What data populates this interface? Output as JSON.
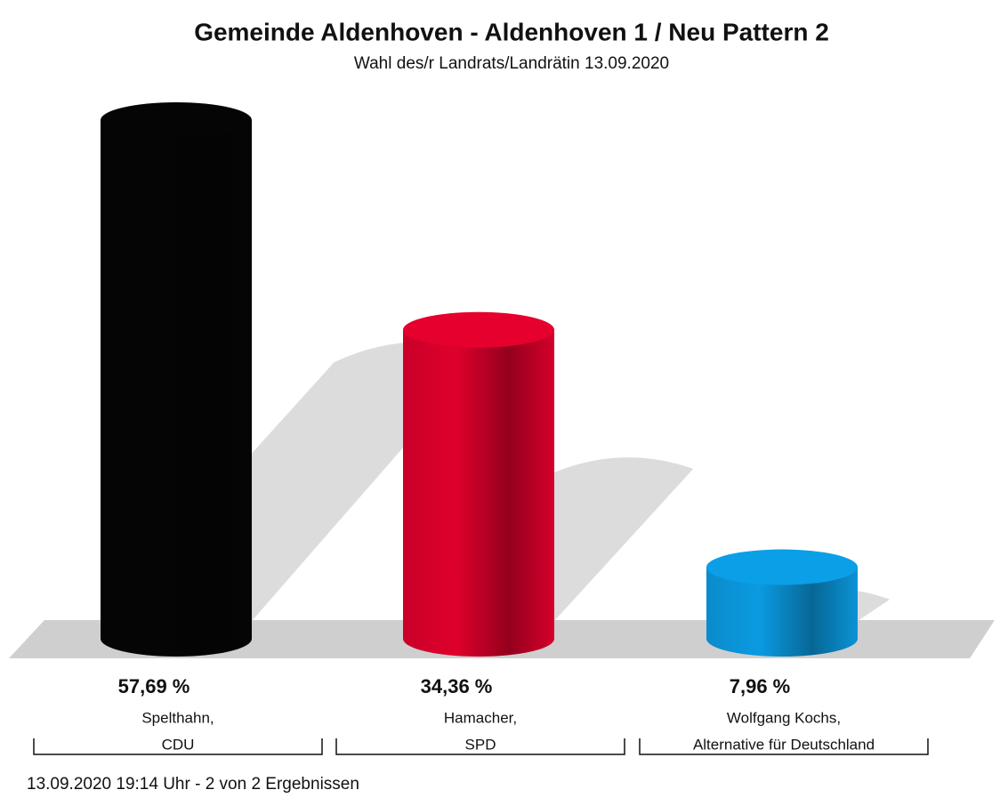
{
  "chart_data": {
    "type": "bar",
    "title": "Gemeinde Aldenhoven - Aldenhoven 1 / Neu Pattern 2",
    "subtitle": "Wahl des/r Landrats/Landrätin 13.09.2020",
    "categories": [
      [
        "Spelthahn,",
        "CDU"
      ],
      [
        "Hamacher,",
        "SPD"
      ],
      [
        "Wolfgang Kochs,",
        "Alternative für Deutschland"
      ]
    ],
    "values": [
      57.69,
      34.36,
      7.96
    ],
    "value_labels": [
      "57,69 %",
      "34,36 %",
      "7,96 %"
    ],
    "colors": [
      "#050505",
      "#d4002a",
      "#0a93d6"
    ],
    "footnote": "13.09.2020 19:14 Uhr - 2 von 2 Ergebnissen"
  }
}
